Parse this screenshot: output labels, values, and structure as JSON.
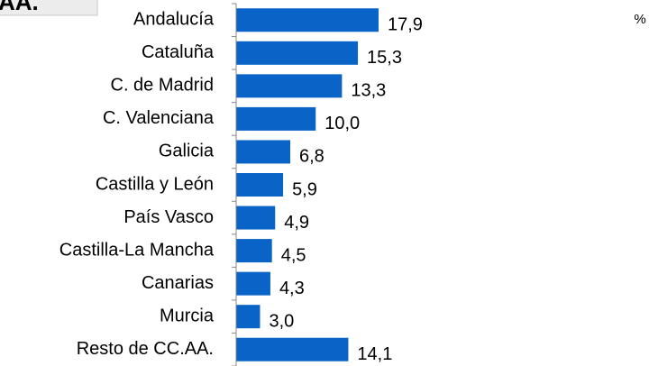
{
  "chart_data": {
    "type": "bar",
    "orientation": "horizontal",
    "title": "AA.",
    "unit": "%",
    "categories": [
      "Andalucía",
      "Cataluña",
      "C. de Madrid",
      "C. Valenciana",
      "Galicia",
      "Castilla y León",
      "País Vasco",
      "Castilla-La Mancha",
      "Canarias",
      "Murcia",
      "Resto de CC.AA."
    ],
    "values": [
      17.9,
      15.3,
      13.3,
      10.0,
      6.8,
      5.9,
      4.9,
      4.5,
      4.3,
      3.0,
      14.1
    ],
    "value_labels": [
      "17,9",
      "15,3",
      "13,3",
      "10,0",
      "6,8",
      "5,9",
      "4,9",
      "4,5",
      "4,3",
      "3,0",
      "14,1"
    ],
    "color": "#0a64c8",
    "xlim": [
      0,
      40
    ]
  }
}
